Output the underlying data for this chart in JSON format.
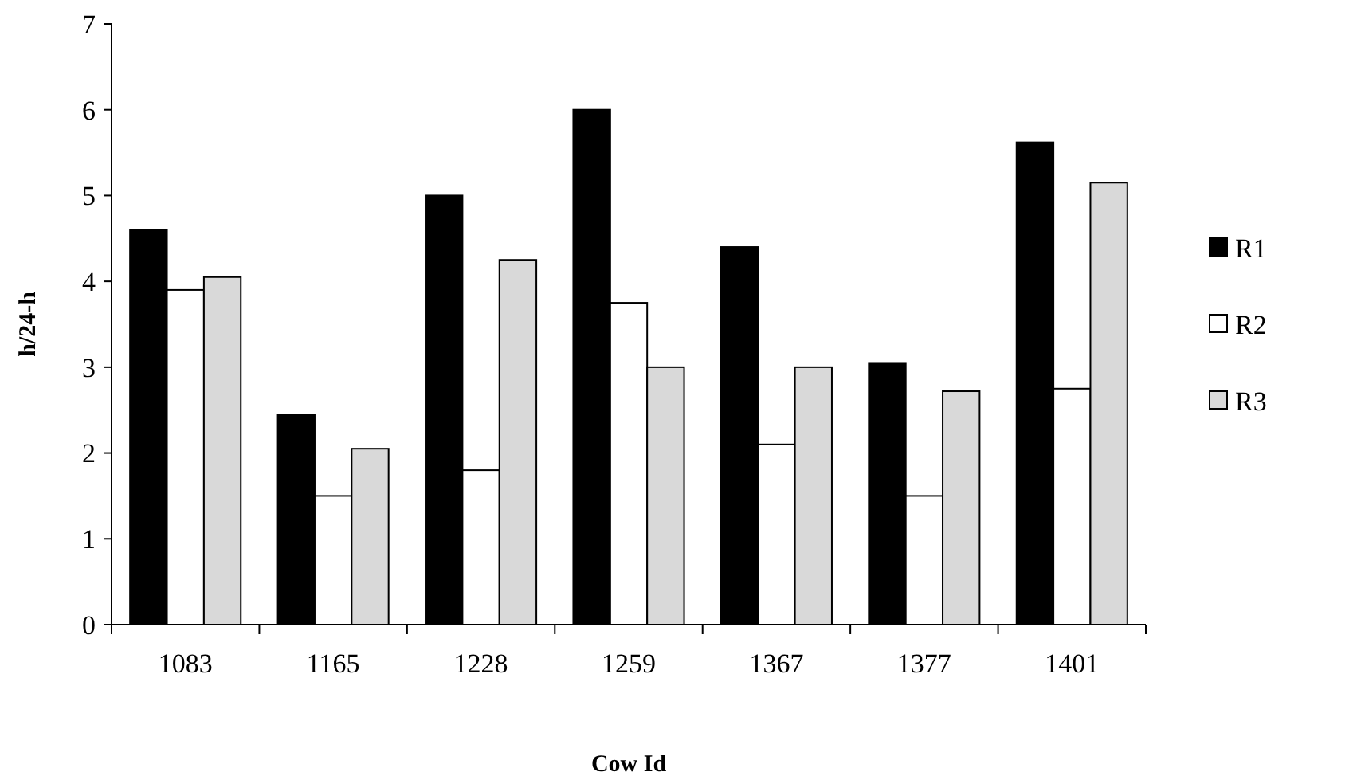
{
  "chart_data": {
    "type": "bar",
    "xlabel": "Cow Id",
    "ylabel": "h/24-h",
    "categories": [
      "1083",
      "1165",
      "1228",
      "1259",
      "1367",
      "1377",
      "1401"
    ],
    "series": [
      {
        "name": "R1",
        "color": "#000000",
        "values": [
          4.6,
          2.45,
          5.0,
          6.0,
          4.4,
          3.05,
          5.62
        ]
      },
      {
        "name": "R2",
        "color": "#ffffff",
        "values": [
          3.9,
          1.5,
          1.8,
          3.75,
          2.1,
          1.5,
          2.75
        ]
      },
      {
        "name": "R3",
        "color": "#d9d9d9",
        "values": [
          4.05,
          2.05,
          4.25,
          3.0,
          3.0,
          2.72,
          5.15
        ]
      }
    ],
    "ylim": [
      0,
      7
    ],
    "yticks": [
      0,
      1,
      2,
      3,
      4,
      5,
      6,
      7
    ],
    "grid": false,
    "legend": "right"
  }
}
